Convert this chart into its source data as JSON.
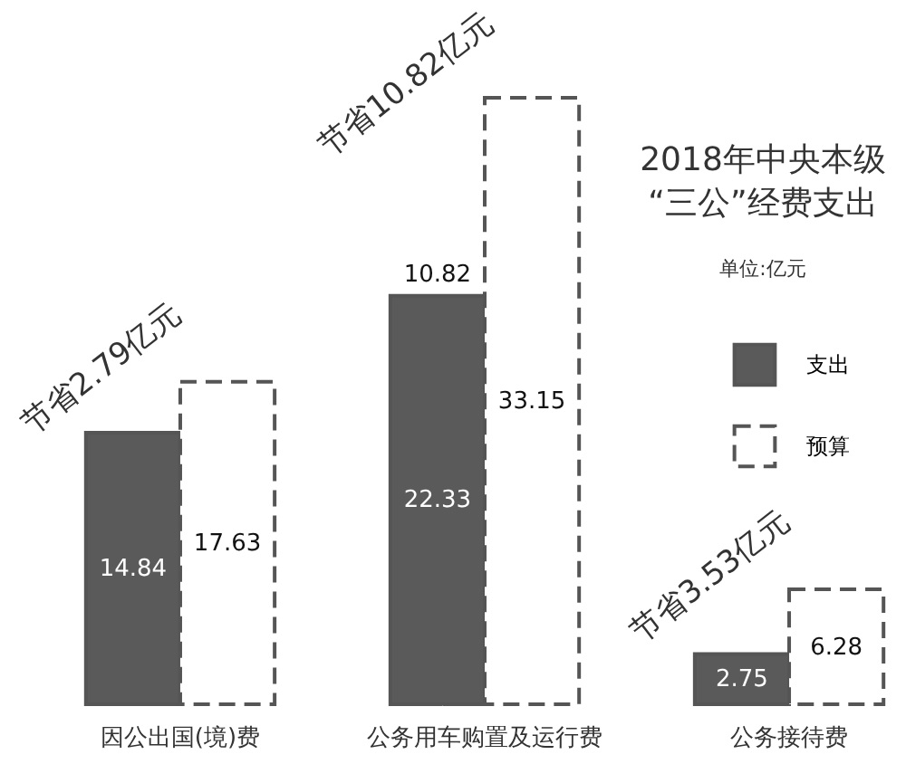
{
  "chart_data": {
    "type": "bar",
    "title": "2018年中央本级\n“三公”经费支出",
    "subtitle": "单位:亿元",
    "categories": [
      "因公出国(境)费",
      "公务用车购置及运行费",
      "公务接待费"
    ],
    "series": [
      {
        "name": "支出",
        "color": "#5a5a5a",
        "values": [
          14.84,
          22.33,
          2.75
        ]
      },
      {
        "name": "预算",
        "color": "#ffffff",
        "line_style": "dashed",
        "values": [
          17.63,
          33.15,
          6.28
        ]
      }
    ],
    "data_labels": true,
    "legend": "right",
    "annotations": [
      {
        "text": "节省2.79亿元",
        "x": "因公出国(境)费",
        "y": 17.63
      },
      {
        "text": "节省10.82亿元",
        "x": "公务用车购置及运行费",
        "y": 33.15
      },
      {
        "text": "节省3.53亿元",
        "x": "公务接待费",
        "y": 6.28
      },
      {
        "text": "10.82",
        "x": "公务用车购置及运行费",
        "y": 22.33
      }
    ]
  }
}
